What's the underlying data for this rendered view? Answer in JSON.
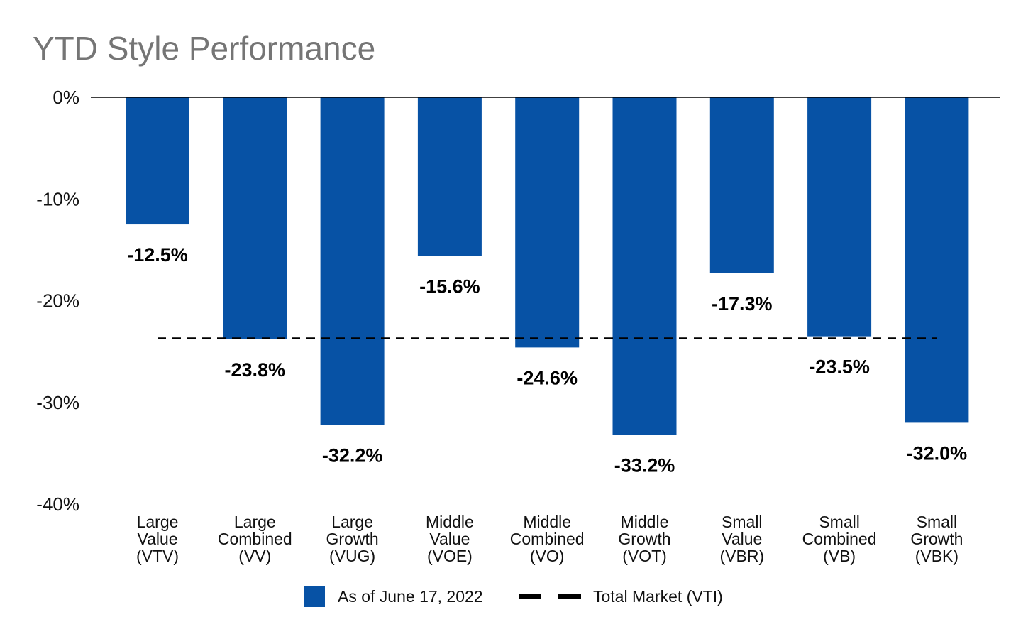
{
  "chart_data": {
    "type": "bar",
    "title": "YTD Style Performance",
    "categories": [
      [
        "Large",
        "Value",
        "(VTV)"
      ],
      [
        "Large",
        "Combined",
        "(VV)"
      ],
      [
        "Large",
        "Growth",
        "(VUG)"
      ],
      [
        "Middle",
        "Value",
        "(VOE)"
      ],
      [
        "Middle",
        "Combined",
        "(VO)"
      ],
      [
        "Middle",
        "Growth",
        "(VOT)"
      ],
      [
        "Small",
        "Value",
        "(VBR)"
      ],
      [
        "Small",
        "Combined",
        "(VB)"
      ],
      [
        "Small",
        "Growth",
        "(VBK)"
      ]
    ],
    "series": [
      {
        "name": "As of June 17, 2022",
        "color": "#0752a5",
        "values": [
          -12.5,
          -23.8,
          -32.2,
          -15.6,
          -24.6,
          -33.2,
          -17.3,
          -23.5,
          -32.0
        ],
        "data_labels": [
          "-12.5%",
          "-23.8%",
          "-32.2%",
          "-15.6%",
          "-24.6%",
          "-33.2%",
          "-17.3%",
          "-23.5%",
          "-32.0%"
        ]
      }
    ],
    "reference_line": {
      "name": "Total Market (VTI)",
      "value": -23.7,
      "style": "dashed",
      "color": "#000000"
    },
    "ylim": [
      -40,
      0
    ],
    "yticks": [
      0,
      -10,
      -20,
      -30,
      -40
    ],
    "ytick_labels": [
      "0%",
      "-10%",
      "-20%",
      "-30%",
      "-40%"
    ],
    "xlabel": "",
    "ylabel": "",
    "grid": false,
    "legend_position": "bottom"
  }
}
